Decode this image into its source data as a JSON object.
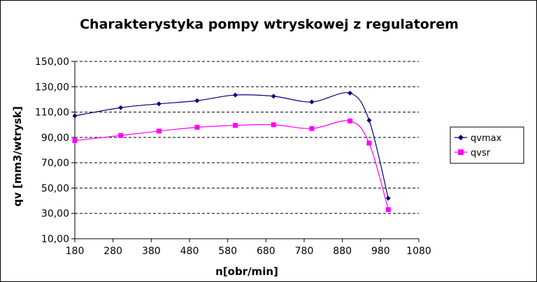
{
  "chart_data": {
    "type": "line",
    "title": "Charakterystyka pompy wtryskowej z regulatorem",
    "xlabel": "n[obr/min]",
    "ylabel": "qv [mm3/wtrysk]",
    "xlim": [
      180,
      1080
    ],
    "ylim": [
      10,
      150
    ],
    "xticks": [
      "180",
      "280",
      "380",
      "480",
      "580",
      "680",
      "780",
      "880",
      "980",
      "1080"
    ],
    "yticks": [
      "10,00",
      "30,00",
      "50,00",
      "70,00",
      "90,00",
      "110,00",
      "130,00",
      "150,00"
    ],
    "grid": "horizontal-dashed",
    "legend_position": "right",
    "series": [
      {
        "name": "qvmax",
        "color": "#00007f",
        "marker": "diamond",
        "x": [
          180,
          300,
          400,
          500,
          600,
          700,
          800,
          900,
          950,
          1000
        ],
        "y": [
          107,
          113.5,
          116.5,
          119,
          123.5,
          122.5,
          118,
          125,
          103.5,
          42
        ]
      },
      {
        "name": "qvsr",
        "color": "#ff00ff",
        "marker": "square",
        "x": [
          180,
          300,
          400,
          500,
          600,
          700,
          800,
          900,
          950,
          1000
        ],
        "y": [
          87.5,
          91.5,
          95,
          98,
          99.5,
          100,
          97,
          103,
          85.5,
          33
        ]
      }
    ]
  }
}
